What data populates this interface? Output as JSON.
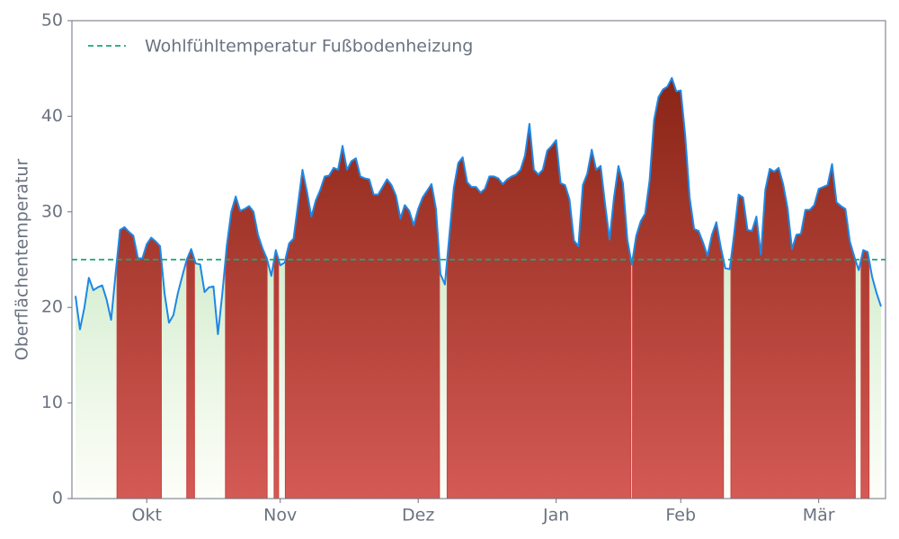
{
  "chart_data": {
    "type": "line",
    "ylabel": "Oberflächentemperatur",
    "threshold": {
      "value": 25,
      "label": "Wohlfühltemperatur Fußbodenheizung",
      "color": "#1aa67a"
    },
    "line_color": "#1e88e5",
    "above_color": "#b03a2e",
    "below_color": "#9fd89a",
    "ylim": [
      0,
      50
    ],
    "yticks": [
      0,
      10,
      20,
      30,
      40,
      50
    ],
    "categories": [
      null,
      null,
      null,
      null,
      null,
      null,
      null,
      null,
      null,
      null,
      null,
      null,
      null,
      null,
      null,
      null,
      "Okt",
      null,
      null,
      null,
      null,
      null,
      null,
      null,
      null,
      null,
      null,
      null,
      null,
      null,
      null,
      null,
      null,
      null,
      null,
      null,
      null,
      null,
      null,
      null,
      null,
      null,
      null,
      null,
      null,
      null,
      "Nov",
      null,
      null,
      null,
      null,
      null,
      null,
      null,
      null,
      null,
      null,
      null,
      null,
      null,
      null,
      null,
      null,
      null,
      null,
      null,
      null,
      null,
      null,
      null,
      null,
      null,
      null,
      null,
      null,
      null,
      null,
      "Dez",
      null,
      null,
      null,
      null,
      null,
      null,
      null,
      null,
      null,
      null,
      null,
      null,
      null,
      null,
      null,
      null,
      null,
      null,
      null,
      null,
      null,
      null,
      null,
      null,
      null,
      null,
      null,
      null,
      null,
      null,
      "Jan",
      null,
      null,
      null,
      null,
      null,
      null,
      null,
      null,
      null,
      null,
      null,
      null,
      null,
      null,
      null,
      null,
      null,
      null,
      null,
      null,
      null,
      null,
      null,
      null,
      null,
      null,
      null,
      "Feb",
      null,
      null,
      null,
      null,
      null,
      null,
      null,
      null,
      null,
      null,
      null,
      null,
      null,
      null,
      null,
      null,
      null,
      null,
      null,
      null,
      null,
      null,
      null,
      null,
      null,
      null,
      null,
      null,
      null,
      null,
      "Mär",
      null,
      null,
      null,
      null,
      null,
      null,
      null,
      null,
      null,
      null,
      null,
      null,
      null,
      null
    ],
    "values": [
      21.2,
      17.7,
      20,
      23.1,
      21.8,
      22.1,
      22.3,
      20.8,
      18.7,
      23.5,
      28.1,
      28.4,
      27.9,
      27.5,
      25.2,
      25.1,
      26.6,
      27.3,
      26.9,
      26.4,
      21.5,
      18.4,
      19.2,
      21.5,
      23.3,
      25.0,
      26.1,
      24.6,
      24.5,
      21.6,
      22.1,
      22.2,
      17.2,
      21.5,
      26.5,
      30.0,
      31.6,
      30.1,
      30.3,
      30.6,
      30.0,
      27.6,
      26.2,
      25.1,
      23.3,
      26.0,
      24.4,
      24.7,
      26.7,
      27.2,
      30.8,
      34.4,
      32.1,
      29.5,
      31.2,
      32.3,
      33.7,
      33.8,
      34.6,
      34.4,
      36.9,
      34.4,
      35.3,
      35.6,
      33.7,
      33.5,
      33.4,
      31.8,
      31.8,
      32.6,
      33.4,
      32.8,
      31.7,
      29.3,
      30.7,
      30.1,
      28.6,
      30.3,
      31.5,
      32.2,
      32.9,
      30.3,
      23.5,
      22.4,
      27.5,
      32.5,
      35.1,
      35.7,
      33.1,
      32.6,
      32.6,
      32.0,
      32.4,
      33.7,
      33.7,
      33.5,
      32.9,
      33.4,
      33.7,
      33.9,
      34.4,
      35.9,
      39.2,
      34.4,
      33.9,
      34.4,
      36.4,
      36.9,
      37.5,
      33.0,
      32.8,
      31.3,
      27.0,
      26.4,
      32.8,
      34.0,
      36.5,
      34.4,
      34.8,
      30.8,
      27.1,
      31.5,
      34.8,
      33.0,
      27.1,
      24.5,
      27.5,
      29.0,
      29.8,
      33.3,
      39.6,
      42.0,
      42.8,
      43.1,
      44.0,
      42.6,
      42.7,
      38.0,
      31.5,
      28.2,
      28.0,
      26.8,
      25.4,
      27.6,
      28.9,
      26.3,
      24.1,
      24.0,
      27.7,
      31.8,
      31.5,
      28.1,
      28.0,
      29.5,
      25.5,
      32.3,
      34.5,
      34.2,
      34.6,
      32.9,
      30.4,
      26.1,
      27.6,
      27.7,
      30.2,
      30.2,
      30.7,
      32.4,
      32.6,
      32.8,
      35.0,
      31.0,
      30.6,
      30.3,
      26.9,
      25.3,
      23.9,
      26.0,
      25.8,
      23.2,
      21.5,
      20.1
    ]
  }
}
